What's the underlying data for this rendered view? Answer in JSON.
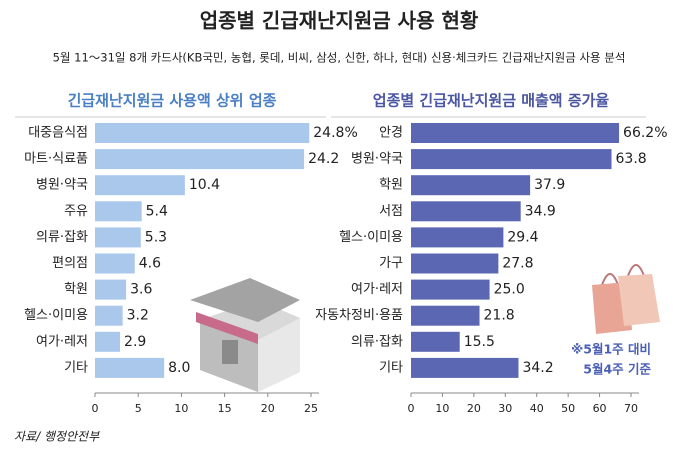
{
  "title": "업종별 긴급재난지원금 사용 현황",
  "subtitle": "5월 11～31일 8개 카드사(KB국민, 농협, 롯데, 비씨, 삼성, 신한, 하나, 현대) 신용·체크카드 긴급재난지원금 사용 분석",
  "source": "자료/ 행정안전부",
  "chart_data": [
    {
      "type": "hbar",
      "title": "긴급재난지원금 사용액 상위 업종",
      "color": "#a9c8ec",
      "categories": [
        "대중음식점",
        "마트·식료품",
        "병원·약국",
        "주유",
        "의류·잡화",
        "편의점",
        "학원",
        "헬스·이미용",
        "여가·레저",
        "기타"
      ],
      "values": [
        24.8,
        24.2,
        10.4,
        5.4,
        5.3,
        4.6,
        3.6,
        3.2,
        2.9,
        8.0
      ],
      "value_labels": [
        "24.8%",
        "24.2",
        "10.4",
        "5.4",
        "5.3",
        "4.6",
        "3.6",
        "3.2",
        "2.9",
        "8.0"
      ],
      "xlim": [
        0,
        25
      ],
      "xticks": [
        0,
        5,
        10,
        15,
        20,
        25
      ]
    },
    {
      "type": "hbar",
      "title": "업종별 긴급재난지원금 매출액 증가율",
      "color": "#5b67b3",
      "categories": [
        "안경",
        "병원·약국",
        "학원",
        "서점",
        "헬스·이미용",
        "가구",
        "여가·레저",
        "자동차정비·용품",
        "의류·잡화",
        "기타"
      ],
      "values": [
        66.2,
        63.8,
        37.9,
        34.9,
        29.4,
        27.8,
        25.0,
        21.8,
        15.5,
        34.2
      ],
      "value_labels": [
        "66.2%",
        "63.8",
        "37.9",
        "34.9",
        "29.4",
        "27.8",
        "25.0",
        "21.8",
        "15.5",
        "34.2"
      ],
      "xlim": [
        0,
        70
      ],
      "xticks": [
        0,
        10,
        20,
        30,
        40,
        50,
        60,
        70
      ],
      "annotation": [
        "※5월1주 대비",
        "5월4주 기준"
      ]
    }
  ]
}
